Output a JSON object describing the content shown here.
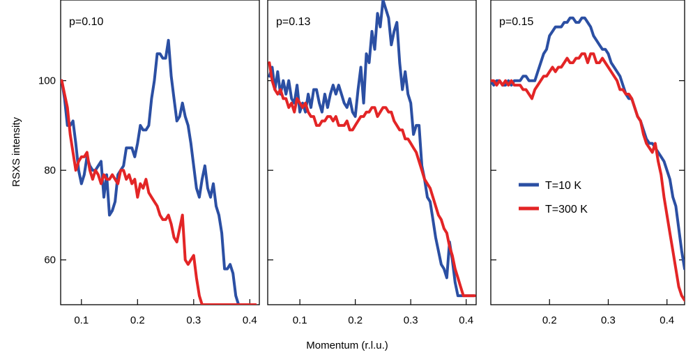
{
  "chart_data": {
    "type": "line",
    "ylabel": "RSXS intensity",
    "xlabel": "Momentum (r.l.u.)",
    "legend": {
      "placement": "right-panel-center",
      "entries": [
        "T=10 K",
        "T=300 K"
      ]
    },
    "colors": {
      "T=10 K": "#2b4fa3",
      "T=300 K": "#e32526"
    },
    "grid": false,
    "ylim": [
      50,
      118
    ],
    "yticks": [
      60,
      80,
      100
    ],
    "panels": [
      {
        "label": "p=0.10",
        "xlim": [
          0.063,
          0.417
        ],
        "xticks": [
          0.1,
          0.2,
          0.3,
          0.4
        ],
        "series": [
          {
            "name": "T=10 K",
            "x": [
              0.065,
              0.07,
              0.075,
              0.08,
              0.085,
              0.09,
              0.095,
              0.1,
              0.105,
              0.11,
              0.115,
              0.12,
              0.125,
              0.13,
              0.135,
              0.14,
              0.145,
              0.15,
              0.155,
              0.16,
              0.165,
              0.17,
              0.175,
              0.18,
              0.185,
              0.19,
              0.195,
              0.2,
              0.205,
              0.21,
              0.215,
              0.22,
              0.225,
              0.23,
              0.235,
              0.24,
              0.245,
              0.25,
              0.255,
              0.26,
              0.265,
              0.27,
              0.275,
              0.28,
              0.285,
              0.29,
              0.295,
              0.3,
              0.305,
              0.31,
              0.315,
              0.32,
              0.325,
              0.33,
              0.335,
              0.34,
              0.345,
              0.35,
              0.355,
              0.36,
              0.365,
              0.37,
              0.375,
              0.38,
              0.385,
              0.39,
              0.395,
              0.4,
              0.405,
              0.41
            ],
            "y": [
              100,
              96,
              90,
              90,
              91,
              86,
              80,
              77,
              79,
              83,
              81,
              80,
              80,
              81,
              82,
              74,
              79,
              70,
              71,
              73,
              79,
              80,
              81,
              85,
              85,
              85,
              83,
              86,
              90,
              89,
              89,
              90,
              96,
              100,
              106,
              106,
              105,
              105,
              109,
              101,
              96,
              91,
              92,
              95,
              92,
              90,
              86,
              81,
              76,
              74,
              78,
              81,
              76,
              74,
              77,
              72,
              70,
              66,
              58,
              58,
              59,
              57,
              52,
              50,
              50,
              50,
              50,
              50,
              50,
              50
            ]
          },
          {
            "name": "T=300 K",
            "x": [
              0.065,
              0.07,
              0.075,
              0.08,
              0.085,
              0.09,
              0.095,
              0.1,
              0.105,
              0.11,
              0.115,
              0.12,
              0.125,
              0.13,
              0.135,
              0.14,
              0.145,
              0.15,
              0.155,
              0.16,
              0.165,
              0.17,
              0.175,
              0.18,
              0.185,
              0.19,
              0.195,
              0.2,
              0.205,
              0.21,
              0.215,
              0.22,
              0.225,
              0.23,
              0.235,
              0.24,
              0.245,
              0.25,
              0.255,
              0.26,
              0.265,
              0.27,
              0.275,
              0.28,
              0.285,
              0.29,
              0.295,
              0.3,
              0.305,
              0.31,
              0.315,
              0.32,
              0.325,
              0.33,
              0.335,
              0.34,
              0.345,
              0.35,
              0.355,
              0.36,
              0.365,
              0.37,
              0.375,
              0.38,
              0.385,
              0.39,
              0.395,
              0.4,
              0.405,
              0.41
            ],
            "y": [
              100,
              97,
              94,
              88,
              84,
              80,
              82,
              83,
              83,
              84,
              80,
              78,
              80,
              79,
              77,
              79,
              78,
              78,
              79,
              78,
              77,
              80,
              80,
              78,
              79,
              77,
              78,
              74,
              77,
              76,
              78,
              75,
              74,
              73,
              72,
              70,
              69,
              69,
              70,
              68,
              65,
              64,
              67,
              70,
              60,
              59,
              60,
              61,
              56,
              52,
              50,
              50,
              50,
              50,
              50,
              50,
              50,
              50,
              50,
              50,
              50,
              50,
              50,
              50,
              50,
              50,
              50,
              50,
              50,
              50
            ]
          }
        ]
      },
      {
        "label": "p=0.13",
        "xlim": [
          0.042,
          0.418
        ],
        "xticks": [
          0.1,
          0.2,
          0.3,
          0.4
        ],
        "series": [
          {
            "name": "T=10 K",
            "x": [
              0.045,
              0.05,
              0.055,
              0.06,
              0.065,
              0.07,
              0.075,
              0.08,
              0.085,
              0.09,
              0.095,
              0.1,
              0.105,
              0.11,
              0.115,
              0.12,
              0.125,
              0.13,
              0.135,
              0.14,
              0.145,
              0.15,
              0.155,
              0.16,
              0.165,
              0.17,
              0.175,
              0.18,
              0.185,
              0.19,
              0.195,
              0.2,
              0.205,
              0.21,
              0.215,
              0.22,
              0.225,
              0.23,
              0.235,
              0.24,
              0.245,
              0.25,
              0.255,
              0.26,
              0.265,
              0.27,
              0.275,
              0.28,
              0.285,
              0.29,
              0.295,
              0.3,
              0.305,
              0.31,
              0.315,
              0.32,
              0.325,
              0.33,
              0.335,
              0.34,
              0.345,
              0.35,
              0.355,
              0.36,
              0.365,
              0.37,
              0.375,
              0.38,
              0.385,
              0.39,
              0.395,
              0.4,
              0.405,
              0.41,
              0.415
            ],
            "y": [
              101,
              103,
              98,
              102,
              97,
              100,
              97,
              100,
              96,
              95,
              99,
              93,
              95,
              93,
              97,
              94,
              98,
              98,
              95,
              93,
              97,
              94,
              97,
              99,
              97,
              99,
              97,
              95,
              94,
              96,
              93,
              92,
              98,
              103,
              95,
              106,
              104,
              111,
              107,
              115,
              112,
              118,
              116,
              114,
              108,
              111,
              113,
              104,
              98,
              102,
              97,
              95,
              88,
              90,
              90,
              81,
              78,
              74,
              73,
              69,
              65,
              62,
              59,
              58,
              56,
              64,
              60,
              55,
              52,
              52,
              52,
              52,
              52,
              52,
              52
            ]
          },
          {
            "name": "T=300 K",
            "x": [
              0.045,
              0.05,
              0.055,
              0.06,
              0.065,
              0.07,
              0.075,
              0.08,
              0.085,
              0.09,
              0.095,
              0.1,
              0.105,
              0.11,
              0.115,
              0.12,
              0.125,
              0.13,
              0.135,
              0.14,
              0.145,
              0.15,
              0.155,
              0.16,
              0.165,
              0.17,
              0.175,
              0.18,
              0.185,
              0.19,
              0.195,
              0.2,
              0.205,
              0.21,
              0.215,
              0.22,
              0.225,
              0.23,
              0.235,
              0.24,
              0.245,
              0.25,
              0.255,
              0.26,
              0.265,
              0.27,
              0.275,
              0.28,
              0.285,
              0.29,
              0.295,
              0.3,
              0.305,
              0.31,
              0.315,
              0.32,
              0.325,
              0.33,
              0.335,
              0.34,
              0.345,
              0.35,
              0.355,
              0.36,
              0.365,
              0.37,
              0.375,
              0.38,
              0.385,
              0.39,
              0.395,
              0.4,
              0.405,
              0.41,
              0.415
            ],
            "y": [
              104,
              100,
              98,
              97,
              98,
              96,
              96,
              94,
              95,
              93,
              96,
              95,
              94,
              95,
              93,
              92,
              92,
              90,
              90,
              91,
              91,
              92,
              92,
              91,
              92,
              90,
              90,
              90,
              91,
              89,
              89,
              90,
              91,
              92,
              92,
              93,
              93,
              94,
              94,
              92,
              93,
              94,
              94,
              93,
              93,
              91,
              90,
              89,
              89,
              87,
              87,
              86,
              85,
              84,
              82,
              80,
              78,
              77,
              76,
              74,
              72,
              70,
              69,
              67,
              66,
              63,
              61,
              58,
              56,
              54,
              52,
              52,
              52,
              52,
              52
            ]
          }
        ]
      },
      {
        "label": "p=0.15",
        "xlim": [
          0.1,
          0.43
        ],
        "xticks": [
          0.2,
          0.3,
          0.4
        ],
        "series": [
          {
            "name": "T=10 K",
            "x": [
              0.1,
              0.105,
              0.11,
              0.115,
              0.12,
              0.125,
              0.13,
              0.135,
              0.14,
              0.145,
              0.15,
              0.155,
              0.16,
              0.165,
              0.17,
              0.175,
              0.18,
              0.185,
              0.19,
              0.195,
              0.2,
              0.205,
              0.21,
              0.215,
              0.22,
              0.225,
              0.23,
              0.235,
              0.24,
              0.245,
              0.25,
              0.255,
              0.26,
              0.265,
              0.27,
              0.275,
              0.28,
              0.285,
              0.29,
              0.295,
              0.3,
              0.305,
              0.31,
              0.315,
              0.32,
              0.325,
              0.33,
              0.335,
              0.34,
              0.345,
              0.35,
              0.355,
              0.36,
              0.365,
              0.37,
              0.375,
              0.38,
              0.385,
              0.39,
              0.395,
              0.4,
              0.405,
              0.41,
              0.415,
              0.42,
              0.425,
              0.43
            ],
            "y": [
              100,
              99,
              100,
              100,
              99,
              99,
              100,
              99,
              100,
              100,
              100,
              101,
              101,
              100,
              100,
              100,
              102,
              104,
              106,
              107,
              110,
              111,
              112,
              112,
              112,
              113,
              113,
              114,
              114,
              113,
              113,
              114,
              114,
              113,
              112,
              110,
              109,
              108,
              107,
              107,
              106,
              104,
              103,
              102,
              101,
              99,
              97,
              96,
              96,
              94,
              92,
              91,
              89,
              87,
              86,
              86,
              85,
              84,
              83,
              82,
              80,
              78,
              74,
              72,
              67,
              62,
              58
            ]
          },
          {
            "name": "T=300 K",
            "x": [
              0.1,
              0.105,
              0.11,
              0.115,
              0.12,
              0.125,
              0.13,
              0.135,
              0.14,
              0.145,
              0.15,
              0.155,
              0.16,
              0.165,
              0.17,
              0.175,
              0.18,
              0.185,
              0.19,
              0.195,
              0.2,
              0.205,
              0.21,
              0.215,
              0.22,
              0.225,
              0.23,
              0.235,
              0.24,
              0.245,
              0.25,
              0.255,
              0.26,
              0.265,
              0.27,
              0.275,
              0.28,
              0.285,
              0.29,
              0.295,
              0.3,
              0.305,
              0.31,
              0.315,
              0.32,
              0.325,
              0.33,
              0.335,
              0.34,
              0.345,
              0.35,
              0.355,
              0.36,
              0.365,
              0.37,
              0.375,
              0.38,
              0.385,
              0.39,
              0.395,
              0.4,
              0.405,
              0.41,
              0.415,
              0.42,
              0.425,
              0.43
            ],
            "y": [
              100,
              100,
              99,
              100,
              99,
              100,
              99,
              100,
              99,
              99,
              99,
              98,
              98,
              97,
              96,
              98,
              99,
              100,
              101,
              101,
              102,
              103,
              102,
              103,
              103,
              104,
              105,
              104,
              104,
              105,
              105,
              106,
              106,
              104,
              106,
              106,
              104,
              104,
              105,
              104,
              103,
              102,
              101,
              100,
              98,
              98,
              97,
              97,
              96,
              94,
              92,
              91,
              88,
              86,
              85,
              84,
              86,
              82,
              79,
              74,
              70,
              66,
              62,
              58,
              54,
              52,
              51
            ]
          }
        ]
      }
    ]
  }
}
